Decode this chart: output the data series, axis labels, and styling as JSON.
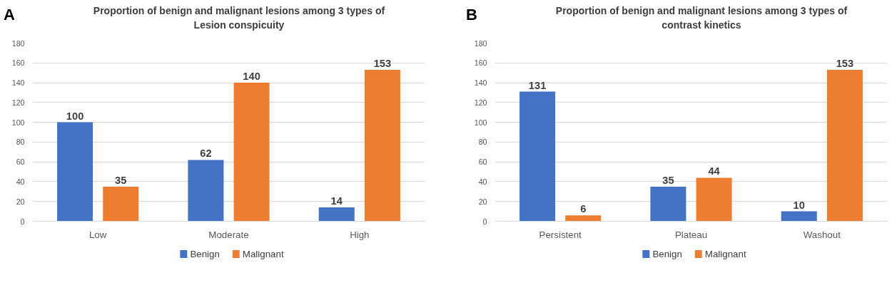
{
  "chart_data": [
    {
      "type": "bar",
      "title": "Proportion of benign and malignant lesions among 3 types of\nLesion conspicuity",
      "annotations": [
        "A"
      ],
      "categories": [
        "Low",
        "Moderate",
        "High"
      ],
      "series": [
        {
          "name": "Benign",
          "color": "#4472c4",
          "values": [
            100,
            62,
            14
          ]
        },
        {
          "name": "Malignant",
          "color": "#ed7d31",
          "values": [
            35,
            140,
            153
          ]
        }
      ],
      "ylim": [
        0,
        180
      ],
      "yticks": [
        0,
        20,
        40,
        60,
        80,
        100,
        120,
        140,
        160,
        180
      ],
      "grid": "y",
      "legend": "bottom",
      "data_labels": true
    },
    {
      "type": "bar",
      "title": "Proportion of benign and malignant lesions among 3 types of\ncontrast kinetics",
      "annotations": [
        "B"
      ],
      "categories": [
        "Persistent",
        "Plateau",
        "Washout"
      ],
      "series": [
        {
          "name": "Benign",
          "color": "#4472c4",
          "values": [
            131,
            35,
            10
          ]
        },
        {
          "name": "Malignant",
          "color": "#ed7d31",
          "values": [
            6,
            44,
            153
          ]
        }
      ],
      "ylim": [
        0,
        180
      ],
      "yticks": [
        0,
        20,
        40,
        60,
        80,
        100,
        120,
        140,
        160,
        180
      ],
      "grid": "y",
      "legend": "bottom",
      "data_labels": true
    }
  ]
}
